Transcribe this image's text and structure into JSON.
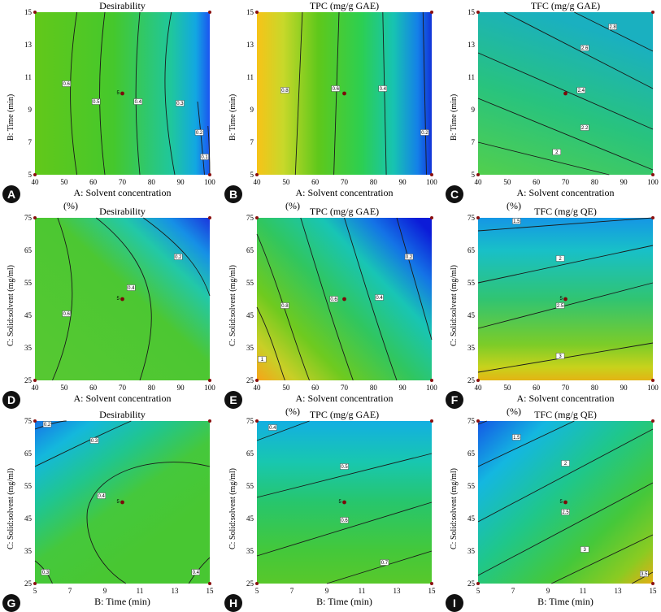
{
  "chart_data": [
    {
      "id": "A",
      "type": "contour",
      "title": "Desirability",
      "xlabel": "A: Solvent concentration",
      "xlabel_suffix": "(%)",
      "ylabel": "B: Time (min)",
      "xlim": [
        40,
        100
      ],
      "ylim": [
        5,
        15
      ],
      "xticks": [
        40,
        50,
        60,
        70,
        80,
        90,
        100
      ],
      "yticks": [
        5,
        7,
        9,
        11,
        13,
        15
      ],
      "contour_labels": [
        "0.6",
        "0.5",
        "0.4",
        "0.3",
        "0.2",
        "0.1"
      ],
      "center_point": {
        "x": 70,
        "y": 10,
        "label": "5"
      }
    },
    {
      "id": "B",
      "type": "contour",
      "title": "TPC (mg/g GAE)",
      "xlabel": "A: Solvent concentration",
      "xlabel_suffix": "(%)",
      "ylabel": "B: Time (min)",
      "xlim": [
        40,
        100
      ],
      "ylim": [
        5,
        15
      ],
      "xticks": [
        40,
        50,
        60,
        70,
        80,
        90,
        100
      ],
      "yticks": [
        5,
        7,
        9,
        11,
        13,
        15
      ],
      "contour_labels": [
        "0.8",
        "0.6",
        "0.4",
        "0.2"
      ],
      "center_point": {
        "x": 70,
        "y": 10,
        "label": ""
      }
    },
    {
      "id": "C",
      "type": "contour",
      "title": "TFC (mg/g GAE)",
      "xlabel": "A: Solvent concentration",
      "xlabel_suffix": "(%)",
      "ylabel": "B: Time (min)",
      "xlim": [
        40,
        100
      ],
      "ylim": [
        5,
        15
      ],
      "xticks": [
        40,
        50,
        60,
        70,
        80,
        90,
        100
      ],
      "yticks": [
        5,
        7,
        9,
        11,
        13,
        15
      ],
      "contour_labels": [
        "2.8",
        "2.6",
        "2.4",
        "2.2",
        "2"
      ],
      "center_point": {
        "x": 70,
        "y": 10,
        "label": ""
      }
    },
    {
      "id": "D",
      "type": "contour",
      "title": "Desirability",
      "xlabel": "A: Solvent concentration",
      "xlabel_suffix": "",
      "ylabel": "C: Solid:solvent (mg/ml)",
      "xlim": [
        40,
        100
      ],
      "ylim": [
        25,
        75
      ],
      "xticks": [
        40,
        50,
        60,
        70,
        80,
        90,
        100
      ],
      "yticks": [
        25,
        35,
        45,
        55,
        65,
        75
      ],
      "contour_labels": [
        "0.6",
        "0.4",
        "0.2"
      ],
      "center_point": {
        "x": 70,
        "y": 50,
        "label": "5"
      }
    },
    {
      "id": "E",
      "type": "contour",
      "title": "TPC (mg/g GAE)",
      "xlabel": "A: Solvent concentration",
      "xlabel_suffix": "(%)",
      "ylabel": "C: Solid:solvent (mg/ml)",
      "xlim": [
        40,
        100
      ],
      "ylim": [
        25,
        75
      ],
      "xticks": [
        40,
        50,
        60,
        70,
        80,
        90,
        100
      ],
      "yticks": [
        25,
        35,
        45,
        55,
        65,
        75
      ],
      "contour_labels": [
        "1",
        "0.8",
        "0.6",
        "0.4",
        "0.2"
      ],
      "center_point": {
        "x": 70,
        "y": 50,
        "label": ""
      }
    },
    {
      "id": "F",
      "type": "contour",
      "title": "TFC (mg/g QE)",
      "xlabel": "A: Solvent concentration",
      "xlabel_suffix": "(%)",
      "ylabel": "C: Solid:solvent (mg/ml)",
      "xlim": [
        40,
        100
      ],
      "ylim": [
        25,
        75
      ],
      "xticks": [
        40,
        50,
        60,
        70,
        80,
        90,
        100
      ],
      "yticks": [
        25,
        35,
        45,
        55,
        65,
        75
      ],
      "contour_labels": [
        "1.5",
        "2",
        "2.5",
        "3"
      ],
      "center_point": {
        "x": 70,
        "y": 50,
        "label": "5"
      }
    },
    {
      "id": "G",
      "type": "contour",
      "title": "Desirability",
      "xlabel": "B: Time (min)",
      "xlabel_suffix": "",
      "ylabel": "C: Solid:solvent (mg/ml)",
      "xlim": [
        5,
        15
      ],
      "ylim": [
        25,
        75
      ],
      "xticks": [
        5,
        7,
        9,
        11,
        13,
        15
      ],
      "yticks": [
        25,
        35,
        45,
        55,
        65,
        75
      ],
      "contour_labels": [
        "0.2",
        "0.3",
        "0.4",
        "0.3",
        "0.4"
      ],
      "center_point": {
        "x": 10,
        "y": 50,
        "label": "5"
      }
    },
    {
      "id": "H",
      "type": "contour",
      "title": "TPC (mg/g GAE)",
      "xlabel": "B: Time (min)",
      "xlabel_suffix": "",
      "ylabel": "C: Solid:solvent (mg/ml)",
      "xlim": [
        5,
        15
      ],
      "ylim": [
        25,
        75
      ],
      "xticks": [
        5,
        7,
        9,
        11,
        13,
        15
      ],
      "yticks": [
        25,
        35,
        45,
        55,
        65,
        75
      ],
      "contour_labels": [
        "0.4",
        "0.5",
        "0.6",
        "0.7"
      ],
      "center_point": {
        "x": 10,
        "y": 50,
        "label": "5"
      }
    },
    {
      "id": "I",
      "type": "contour",
      "title": "TFC (mg/g QE)",
      "xlabel": "B: Time (min)",
      "xlabel_suffix": "",
      "ylabel": "C: Solid:solvent (mg/ml)",
      "xlim": [
        5,
        15
      ],
      "ylim": [
        25,
        75
      ],
      "xticks": [
        5,
        7,
        9,
        11,
        13,
        15
      ],
      "yticks": [
        25,
        35,
        45,
        55,
        65,
        75
      ],
      "contour_labels": [
        "1.5",
        "2",
        "2.5",
        "3",
        "3.5"
      ],
      "center_point": {
        "x": 10,
        "y": 50,
        "label": "5"
      }
    }
  ]
}
